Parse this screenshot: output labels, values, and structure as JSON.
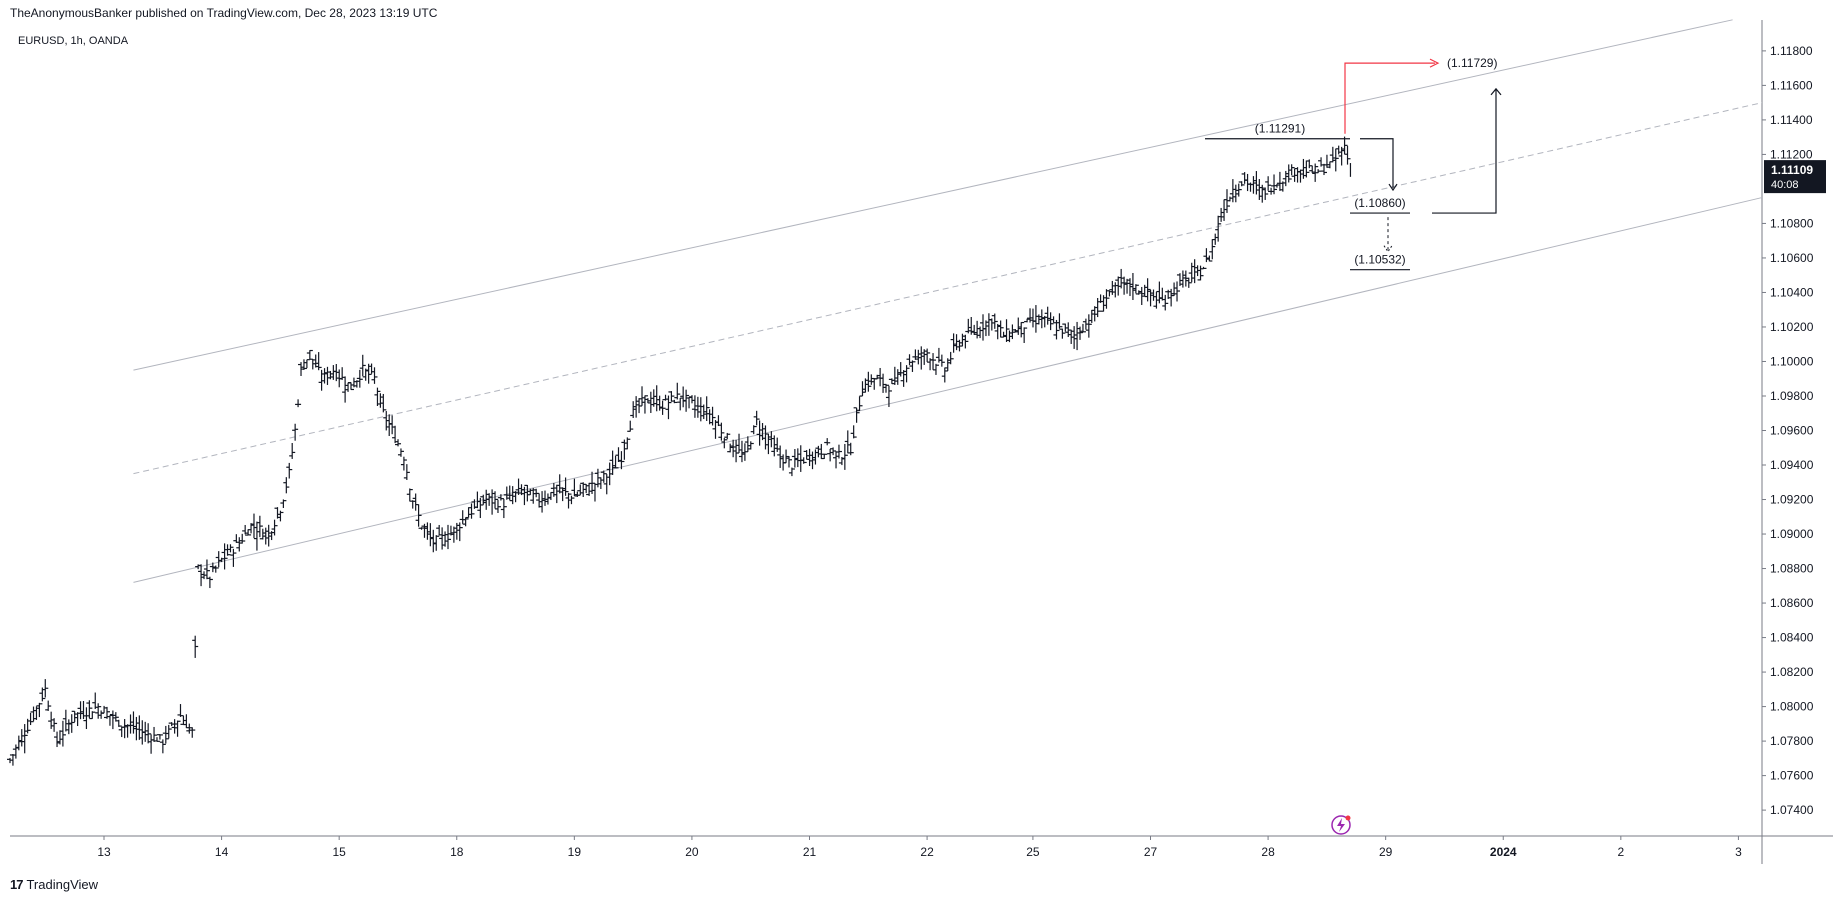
{
  "header": {
    "published_by": "TheAnonymousBanker published on TradingView.com, Dec 28, 2023 13:19 UTC"
  },
  "symbol_info": "EURUSD, 1h, OANDA",
  "footer": {
    "brand": "TradingView",
    "logo_glyph": "17"
  },
  "colors": {
    "candle": "#131722",
    "channel": "#b2b5be",
    "target_red": "#f23645",
    "price_tag_bg": "#131722"
  },
  "chart_data": {
    "type": "line",
    "title": "",
    "xlabel": "",
    "ylabel": "",
    "ylim": [
      1.0725,
      1.1195
    ],
    "yticks": [
      "1.11800",
      "1.11600",
      "1.11400",
      "1.11200",
      "1.10800",
      "1.10600",
      "1.10400",
      "1.10200",
      "1.10000",
      "1.09800",
      "1.09600",
      "1.09400",
      "1.09200",
      "1.09000",
      "1.08800",
      "1.08600",
      "1.08400",
      "1.08200",
      "1.08000",
      "1.07800",
      "1.07600",
      "1.07400"
    ],
    "xticks": [
      "13",
      "14",
      "15",
      "18",
      "19",
      "20",
      "21",
      "22",
      "25",
      "27",
      "28",
      "29",
      "2024",
      "2",
      "3"
    ],
    "x_bar_index": [
      0,
      40,
      80,
      120,
      160,
      200,
      240,
      280,
      316,
      356,
      396,
      436,
      476,
      516,
      556
    ],
    "x_bar_max": 596,
    "current_price": {
      "label": "1.11109",
      "countdown": "40:08",
      "value": 1.11109
    },
    "series": [
      {
        "points": [
          [
            0,
            1.0769
          ],
          [
            8,
            1.0795
          ],
          [
            12,
            1.081
          ],
          [
            16,
            1.078
          ],
          [
            22,
            1.0795
          ],
          [
            30,
            1.08
          ],
          [
            38,
            1.079
          ],
          [
            46,
            1.0785
          ],
          [
            52,
            1.078
          ],
          [
            58,
            1.0795
          ],
          [
            62,
            1.0785
          ],
          [
            64,
            1.088
          ],
          [
            68,
            1.0875
          ],
          [
            72,
            1.0885
          ],
          [
            78,
            1.0895
          ],
          [
            82,
            1.0905
          ],
          [
            88,
            1.09
          ],
          [
            92,
            1.0915
          ],
          [
            95,
            1.0935
          ],
          [
            97,
            1.096
          ],
          [
            99,
            1.0995
          ],
          [
            102,
            1.1005
          ],
          [
            106,
            1.099
          ],
          [
            110,
            1.0995
          ],
          [
            116,
            1.0985
          ],
          [
            120,
            1.0995
          ],
          [
            124,
            1.099
          ],
          [
            127,
            1.097
          ],
          [
            130,
            1.096
          ],
          [
            134,
            1.0945
          ],
          [
            137,
            1.092
          ],
          [
            140,
            1.0905
          ],
          [
            144,
            1.0895
          ],
          [
            150,
            1.09
          ],
          [
            156,
            1.0912
          ],
          [
            162,
            1.092
          ],
          [
            168,
            1.0918
          ],
          [
            174,
            1.0925
          ],
          [
            180,
            1.092
          ],
          [
            186,
            1.0925
          ],
          [
            192,
            1.0922
          ],
          [
            198,
            1.0928
          ],
          [
            204,
            1.0935
          ],
          [
            208,
            1.0945
          ],
          [
            212,
            1.097
          ],
          [
            216,
            1.0978
          ],
          [
            222,
            1.0975
          ],
          [
            228,
            1.098
          ],
          [
            232,
            1.0975
          ],
          [
            238,
            1.097
          ],
          [
            242,
            1.096
          ],
          [
            246,
            1.095
          ],
          [
            250,
            1.0945
          ],
          [
            254,
            1.0965
          ],
          [
            258,
            1.0955
          ],
          [
            262,
            1.0945
          ],
          [
            266,
            1.094
          ],
          [
            272,
            1.0945
          ],
          [
            278,
            1.095
          ],
          [
            282,
            1.0945
          ],
          [
            286,
            1.095
          ],
          [
            290,
            1.0985
          ],
          [
            294,
            1.099
          ],
          [
            300,
            1.0985
          ],
          [
            306,
            1.1
          ],
          [
            312,
            1.1005
          ],
          [
            318,
            1.0995
          ],
          [
            322,
            1.101
          ],
          [
            326,
            1.1015
          ],
          [
            330,
            1.102
          ],
          [
            334,
            1.1025
          ],
          [
            338,
            1.1015
          ],
          [
            344,
            1.102
          ],
          [
            350,
            1.1025
          ],
          [
            356,
            1.102
          ],
          [
            362,
            1.1015
          ],
          [
            368,
            1.1025
          ],
          [
            374,
            1.104
          ],
          [
            380,
            1.1045
          ],
          [
            386,
            1.104
          ],
          [
            392,
            1.1035
          ],
          [
            398,
            1.1045
          ],
          [
            404,
            1.105
          ],
          [
            408,
            1.106
          ],
          [
            412,
            1.1085
          ],
          [
            416,
            1.11
          ],
          [
            420,
            1.1105
          ],
          [
            426,
            1.1098
          ],
          [
            432,
            1.1105
          ],
          [
            438,
            1.1112
          ],
          [
            444,
            1.111
          ],
          [
            450,
            1.1115
          ],
          [
            454,
            1.1125
          ],
          [
            456,
            1.1111
          ]
        ]
      }
    ],
    "channel": {
      "upper": [
        [
          42,
          1.0995
        ],
        [
          586,
          1.1198
        ]
      ],
      "middle": [
        [
          42,
          1.0935
        ],
        [
          596,
          1.115
        ]
      ],
      "lower": [
        [
          42,
          1.0872
        ],
        [
          596,
          1.1095
        ]
      ]
    },
    "annotations": [
      {
        "text": "(1.11729)",
        "value": 1.11729,
        "color": "red"
      },
      {
        "text": "(1.11291)",
        "value": 1.11291
      },
      {
        "text": "(1.10860)",
        "value": 1.1086
      },
      {
        "text": "(1.10532)",
        "value": 1.10532
      }
    ],
    "grid": false,
    "legend": "none"
  }
}
